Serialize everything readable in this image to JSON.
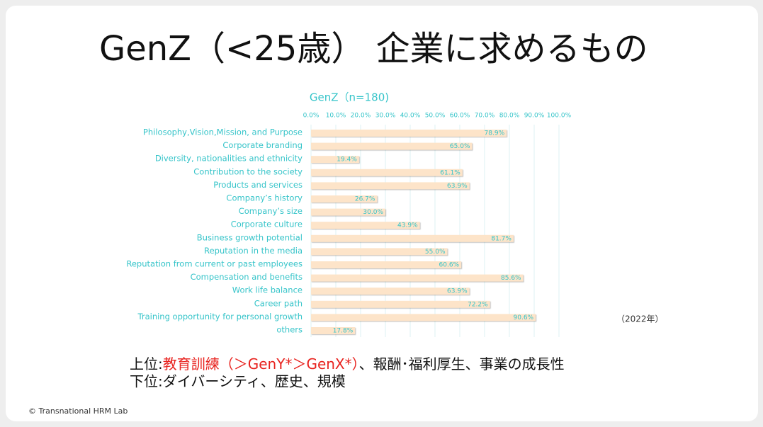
{
  "slide": {
    "title": "GenZ（<25歳） 企業に求めるもの",
    "note_top": {
      "prefix": "上位:",
      "highlight": "教育訓練（＞GenY*＞GenX*）",
      "rest": "、報酬･福利厚生、事業の成長性"
    },
    "note_bottom": "下位:ダイバーシティ、歴史、規模",
    "year": "（2022年）",
    "copyright": "© Transnational HRM Lab"
  },
  "chart_data": {
    "type": "hbar",
    "title": "GenZ（n=180)",
    "categories": [
      "Philosophy,Vision,Mission, and Purpose",
      "Corporate branding",
      "Diversity,  nationalities and ethnicity",
      "Contribution to the society",
      "Products and services",
      "Company’s history",
      "Company’s size",
      "Corporate culture",
      "Business growth potential",
      "Reputation in the media",
      "Reputation from current or past employees",
      "Compensation and benefits",
      "Work life balance",
      "Career path",
      "Training opportunity for personal growth",
      "others"
    ],
    "values": [
      78.9,
      65.0,
      19.4,
      61.1,
      63.9,
      26.7,
      30.0,
      43.9,
      81.7,
      55.0,
      60.6,
      85.6,
      63.9,
      72.2,
      90.6,
      17.8
    ],
    "value_labels": [
      "78.9%",
      "65.0%",
      "19.4%",
      "61.1%",
      "63.9%",
      "26.7%",
      "30.0%",
      "43.9%",
      "81.7%",
      "55.0%",
      "60.6%",
      "85.6%",
      "63.9%",
      "72.2%",
      "90.6%",
      "17.8%"
    ],
    "color": "#fde4c9",
    "xlim": [
      0,
      100
    ],
    "xticks": [
      {
        "value": 0,
        "label": "0.0%"
      },
      {
        "value": 10,
        "label": "10.0%"
      },
      {
        "value": 20,
        "label": "20.0%"
      },
      {
        "value": 30,
        "label": "30.0%"
      },
      {
        "value": 40,
        "label": "40.0%"
      },
      {
        "value": 50,
        "label": "50.0%"
      },
      {
        "value": 60,
        "label": "60.0%"
      },
      {
        "value": 70,
        "label": "70.0%"
      },
      {
        "value": 80,
        "label": "80.0%"
      },
      {
        "value": 90,
        "label": "90.0%"
      },
      {
        "value": 100,
        "label": "100.0%"
      }
    ],
    "grid": true
  }
}
